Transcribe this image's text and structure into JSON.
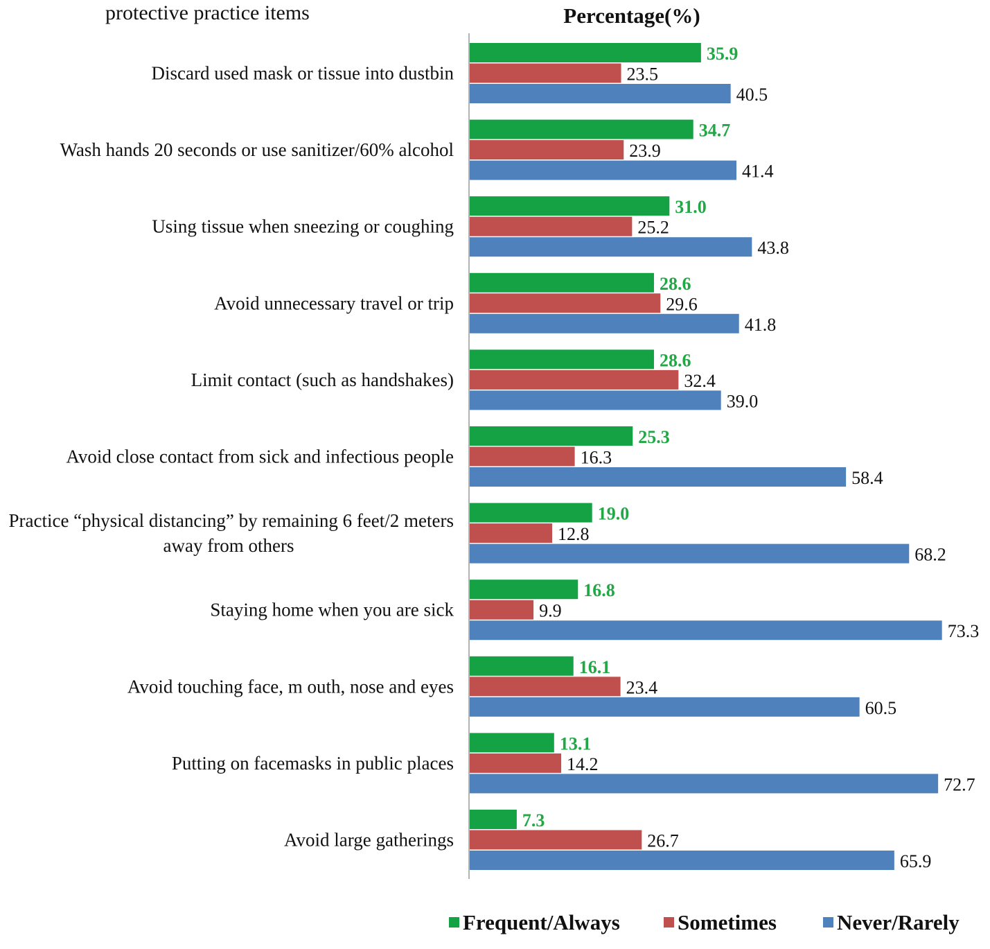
{
  "chart_data": {
    "type": "bar",
    "orientation": "horizontal",
    "title": "Percentage(%)",
    "category_header": "protective practice items",
    "categories": [
      "Discard used mask or tissue into dustbin",
      "Wash hands 20 seconds or use sanitizer/60% alcohol",
      "Using tissue when sneezing or coughing",
      "Avoid unnecessary travel or trip",
      "Limit contact (such as handshakes)",
      "Avoid close contact  from sick and infectious people",
      "Practice “physical distancing” by remaining 6 feet/2 meters away from others",
      "Staying home when you are sick",
      "Avoid touching face, m outh, nose and eyes",
      "Putting on facemasks in public places",
      "Avoid large gatherings"
    ],
    "category_lines": [
      [
        "Discard used mask or tissue into dustbin"
      ],
      [
        "Wash hands 20 seconds or use sanitizer/60% alcohol"
      ],
      [
        "Using tissue when sneezing or coughing"
      ],
      [
        "Avoid unnecessary travel or trip"
      ],
      [
        "Limit contact (such as handshakes)"
      ],
      [
        "Avoid close contact  from sick and infectious people"
      ],
      [
        "Practice “physical distancing” by remaining 6 feet/2 meters",
        "away from  others"
      ],
      [
        "Staying home when you are sick"
      ],
      [
        "Avoid touching face, m outh, nose and eyes"
      ],
      [
        "Putting on facemasks in public places"
      ],
      [
        "Avoid large gatherings"
      ]
    ],
    "series": [
      {
        "name": "Frequent/Always",
        "color": "#14A245",
        "label_color": "#21A845",
        "values": [
          35.9,
          34.7,
          31.0,
          28.6,
          28.6,
          25.3,
          19.0,
          16.8,
          16.1,
          13.1,
          7.3
        ],
        "labels": [
          "35.9",
          "34.7",
          "31.0",
          "28.6",
          "28.6",
          "25.3",
          "19.0",
          "16.8",
          "16.1",
          "13.1",
          "7.3"
        ]
      },
      {
        "name": "Sometimes",
        "color": "#C0504D",
        "label_color": "#111111",
        "values": [
          23.5,
          23.9,
          25.2,
          29.6,
          32.4,
          16.3,
          12.8,
          9.9,
          23.4,
          14.2,
          26.7
        ],
        "labels": [
          "23.5",
          "23.9",
          "25.2",
          "29.6",
          "32.4",
          "16.3",
          "12.8",
          "9.9",
          "23.4",
          "14.2",
          "26.7"
        ]
      },
      {
        "name": "Never/Rarely",
        "color": "#4F81BD",
        "label_color": "#111111",
        "values": [
          40.5,
          41.4,
          43.8,
          41.8,
          39.0,
          58.4,
          68.2,
          73.3,
          60.5,
          72.7,
          65.9
        ],
        "labels": [
          "40.5",
          "41.4",
          "43.8",
          "41.8",
          "39.0",
          "58.4",
          "68.2",
          "73.3",
          "60.5",
          "72.7",
          "65.9"
        ]
      }
    ],
    "legend": [
      "Frequent/Always",
      "Sometimes",
      "Never/Rarely"
    ],
    "legend_position": "bottom",
    "xlim": [
      0,
      80
    ],
    "grid": false,
    "xlabel": "",
    "ylabel": ""
  }
}
